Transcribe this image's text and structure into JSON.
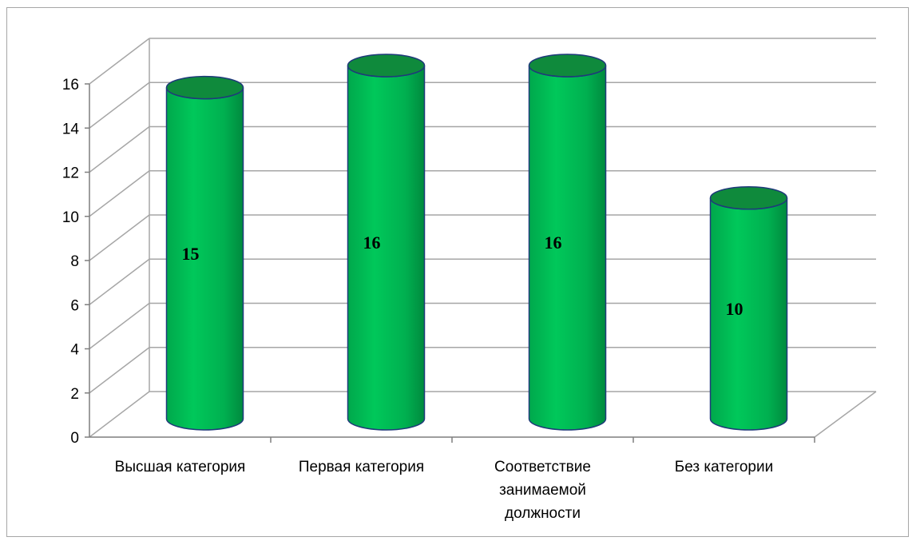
{
  "chart_data": {
    "type": "bar",
    "style": "3d-cylinder",
    "categories": [
      [
        "Высшая категория"
      ],
      [
        "Первая категория"
      ],
      [
        "Соответствие",
        "занимаемой",
        "должности"
      ],
      [
        "Без категории"
      ]
    ],
    "values": [
      15,
      16,
      16,
      10
    ],
    "data_labels": [
      "15",
      "16",
      "16",
      "10"
    ],
    "ylim": [
      0,
      16
    ],
    "yticks": [
      0,
      2,
      4,
      6,
      8,
      10,
      12,
      14,
      16
    ],
    "title": "",
    "xlabel": "",
    "ylabel": "",
    "grid": true,
    "legend": "none",
    "colors": {
      "bar_fill": "#00b050",
      "bar_shadow": "#00873c",
      "bar_top": "#0f8a3c",
      "bar_outline": "#1f3a7a",
      "grid": "#a6a6a6"
    }
  }
}
